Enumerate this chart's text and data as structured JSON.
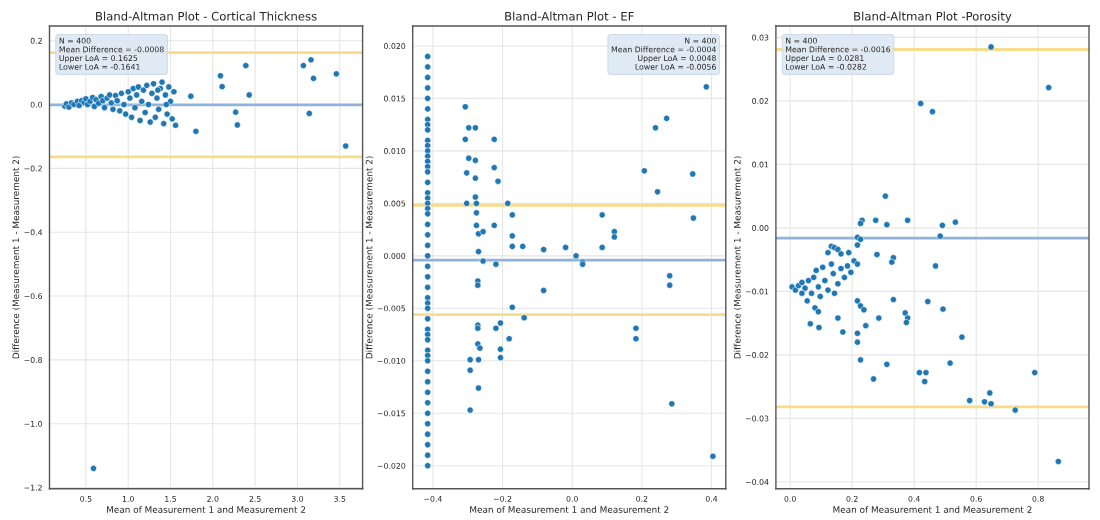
{
  "chart_data": [
    {
      "type": "scatter",
      "title": "Bland-Altman Plot - Cortical Thickness",
      "xlabel": "Mean of Measurement 1 and Measurement 2",
      "ylabel": "Difference (Measurement 1 - Measurement 2)",
      "grid": true,
      "marker": "circle",
      "xlim": [
        0.07,
        3.77
      ],
      "ylim": [
        -1.204,
        0.246
      ],
      "xticks": [
        {
          "value": 0.5,
          "label": "0.5"
        },
        {
          "value": 1.0,
          "label": "1.0"
        },
        {
          "value": 1.5,
          "label": "1.5"
        },
        {
          "value": 2.0,
          "label": "2.0"
        },
        {
          "value": 2.5,
          "label": "2.5"
        },
        {
          "value": 3.0,
          "label": "3.0"
        },
        {
          "value": 3.5,
          "label": "3.5"
        }
      ],
      "yticks": [
        {
          "value": 0.2,
          "label": "0.2"
        },
        {
          "value": 0.0,
          "label": "0.0"
        },
        {
          "value": -0.2,
          "label": "−0.2"
        },
        {
          "value": -0.4,
          "label": "−0.4"
        },
        {
          "value": -0.6,
          "label": "−0.6"
        },
        {
          "value": -0.8,
          "label": "−0.8"
        },
        {
          "value": -1.0,
          "label": "−1.0"
        },
        {
          "value": -1.2,
          "label": "−1.2"
        }
      ],
      "ref_lines": [
        {
          "axis": "y",
          "value": -0.0008,
          "color": "#8fb3d9"
        },
        {
          "axis": "y",
          "value": 0.1625,
          "color": "#f7dc8c"
        },
        {
          "axis": "y",
          "value": -0.1641,
          "color": "#f7dc8c"
        }
      ],
      "annotations": [
        "N = 400",
        "Mean Difference = -0.0008",
        "Upper LoA = 0.1625",
        "Lower LoA = -0.1641"
      ],
      "series": [
        {
          "color": "#1f77b4",
          "x": [
            0.25,
            0.27,
            0.3,
            0.33,
            0.36,
            0.4,
            0.42,
            0.45,
            0.48,
            0.5,
            0.52,
            0.55,
            0.58,
            0.6,
            0.62,
            0.65,
            0.68,
            0.7,
            0.72,
            0.75,
            0.78,
            0.8,
            0.82,
            0.85,
            0.87,
            0.9,
            0.92,
            0.95,
            0.97,
            1.0,
            1.02,
            1.04,
            1.06,
            1.08,
            1.1,
            1.12,
            1.14,
            1.16,
            1.18,
            1.2,
            1.22,
            1.24,
            1.26,
            1.28,
            1.3,
            1.32,
            1.34,
            1.36,
            1.38,
            1.4,
            1.42,
            1.44,
            1.46,
            1.48,
            1.5,
            1.52,
            1.54,
            1.56,
            1.45,
            1.35,
            1.74,
            1.8,
            2.09,
            2.11,
            2.27,
            2.29,
            2.39,
            2.43,
            3.07,
            3.16,
            3.19,
            3.14,
            3.46,
            3.57,
            0.59
          ],
          "values": [
            -0.005,
            0.002,
            -0.008,
            0.005,
            0.0,
            0.01,
            -0.003,
            0.012,
            0.006,
            0.018,
            0.0,
            0.01,
            0.022,
            -0.006,
            0.015,
            0.004,
            0.025,
            0.012,
            -0.01,
            0.02,
            0.03,
            0.005,
            -0.015,
            0.028,
            0.012,
            -0.02,
            0.035,
            0.0,
            -0.03,
            0.04,
            0.02,
            -0.04,
            0.05,
            -0.01,
            0.03,
            0.055,
            -0.05,
            0.01,
            0.045,
            -0.025,
            0.06,
            0.0,
            -0.055,
            0.035,
            0.065,
            -0.04,
            0.02,
            -0.015,
            0.05,
            0.07,
            -0.06,
            0.03,
            -0.03,
            0.055,
            0.01,
            -0.045,
            0.04,
            -0.065,
            0.0,
            0.045,
            0.026,
            -0.084,
            0.09,
            0.056,
            -0.024,
            -0.064,
            0.122,
            0.03,
            0.122,
            0.14,
            0.082,
            -0.028,
            0.096,
            -0.13,
            -1.14
          ]
        }
      ]
    },
    {
      "type": "scatter",
      "title": "Bland-Altman Plot - EF",
      "xlabel": "Mean of Measurement 1 and Measurement 2",
      "ylabel": "Difference (Measurement 1 - Measurement 2)",
      "grid": true,
      "marker": "circle",
      "xlim": [
        -0.458,
        0.441
      ],
      "ylim": [
        -0.0222,
        0.0219
      ],
      "xticks": [
        {
          "value": -0.4,
          "label": "−0.4"
        },
        {
          "value": -0.2,
          "label": "−0.2"
        },
        {
          "value": 0.0,
          "label": "0.0"
        },
        {
          "value": 0.2,
          "label": "0.2"
        },
        {
          "value": 0.4,
          "label": "0.4"
        }
      ],
      "yticks": [
        {
          "value": 0.02,
          "label": "0.020"
        },
        {
          "value": 0.015,
          "label": "0.015"
        },
        {
          "value": 0.01,
          "label": "0.010"
        },
        {
          "value": 0.005,
          "label": "0.005"
        },
        {
          "value": 0.0,
          "label": "0.000"
        },
        {
          "value": -0.005,
          "label": "−0.005"
        },
        {
          "value": -0.01,
          "label": "−0.010"
        },
        {
          "value": -0.015,
          "label": "−0.015"
        },
        {
          "value": -0.02,
          "label": "−0.020"
        }
      ],
      "ref_lines": [
        {
          "axis": "y",
          "value": -0.0004,
          "color": "#8fb3d9"
        },
        {
          "axis": "y",
          "value": 0.0048,
          "color": "#f7dc8c"
        },
        {
          "axis": "y",
          "value": -0.0056,
          "color": "#f7dc8c"
        }
      ],
      "annotations": [
        "N = 400",
        "Mean Difference = -0.0004",
        "Upper LoA = 0.0048",
        "Lower LoA = -0.0056"
      ],
      "series": [
        {
          "color": "#1f77b4",
          "x": [
            -0.415,
            -0.415,
            -0.415,
            -0.415,
            -0.415,
            -0.415,
            -0.415,
            -0.415,
            -0.415,
            -0.415,
            -0.415,
            -0.415,
            -0.415,
            -0.415,
            -0.415,
            -0.415,
            -0.415,
            -0.415,
            -0.415,
            -0.415,
            -0.415,
            -0.415,
            -0.415,
            -0.415,
            -0.415,
            -0.415,
            -0.415,
            -0.415,
            -0.415,
            -0.415,
            -0.415,
            -0.415,
            -0.415,
            -0.415,
            -0.415,
            -0.415,
            -0.415,
            -0.415,
            -0.415,
            -0.415,
            -0.415,
            -0.415,
            -0.415,
            -0.415,
            -0.415,
            -0.415,
            -0.415,
            -0.415,
            -0.415,
            -0.307,
            -0.297,
            -0.278,
            -0.307,
            -0.224,
            -0.297,
            -0.278,
            -0.303,
            -0.224,
            -0.213,
            -0.278,
            -0.278,
            -0.303,
            -0.275,
            -0.185,
            -0.275,
            -0.172,
            -0.275,
            -0.224,
            -0.269,
            -0.256,
            -0.172,
            -0.172,
            -0.142,
            -0.269,
            -0.082,
            -0.019,
            0.011,
            0.086,
            0.086,
            0.121,
            0.121,
            0.207,
            0.245,
            0.239,
            0.271,
            0.346,
            0.348,
            0.385,
            -0.256,
            -0.219,
            -0.271,
            -0.271,
            -0.172,
            -0.138,
            -0.082,
            0.03,
            0.03,
            0.28,
            0.28,
            -0.271,
            -0.271,
            -0.206,
            -0.219,
            -0.181,
            -0.271,
            -0.265,
            -0.293,
            -0.269,
            -0.206,
            -0.206,
            -0.293,
            -0.269,
            -0.293,
            0.183,
            0.183,
            0.286,
            0.404
          ],
          "values": [
            0.019,
            0.018,
            0.017,
            0.016,
            0.015,
            0.014,
            0.013,
            0.0125,
            0.012,
            0.011,
            0.0105,
            0.01,
            0.0095,
            0.009,
            0.0085,
            0.008,
            0.007,
            0.006,
            0.0055,
            0.005,
            0.0045,
            0.004,
            0.003,
            0.002,
            0.001,
            0.0,
            -0.001,
            -0.002,
            -0.003,
            -0.004,
            -0.0045,
            -0.005,
            -0.006,
            -0.007,
            -0.0075,
            -0.008,
            -0.009,
            -0.0095,
            -0.01,
            -0.011,
            -0.012,
            -0.013,
            -0.014,
            -0.015,
            -0.016,
            -0.017,
            -0.018,
            -0.019,
            -0.02,
            0.0142,
            0.0122,
            0.0122,
            0.0111,
            0.0111,
            0.0093,
            0.0091,
            0.0079,
            0.0084,
            0.0071,
            0.0074,
            0.0056,
            0.005,
            0.005,
            0.005,
            0.0041,
            0.0039,
            0.0029,
            0.0029,
            0.0021,
            0.0023,
            0.0019,
            0.0009,
            0.0009,
            0.0004,
            0.0006,
            0.0008,
            0.0,
            0.0039,
            0.0008,
            0.0023,
            0.0018,
            0.0081,
            0.0061,
            0.0122,
            0.0131,
            0.0078,
            0.0036,
            0.0161,
            -0.0005,
            -0.0008,
            -0.0024,
            -0.0028,
            -0.0049,
            -0.0059,
            -0.0033,
            -0.0006,
            -0.0008,
            -0.0019,
            -0.0028,
            -0.0066,
            -0.0069,
            -0.0064,
            -0.0069,
            -0.0079,
            -0.0084,
            -0.0088,
            -0.0099,
            -0.0099,
            -0.0089,
            -0.0097,
            -0.0109,
            -0.0126,
            -0.0147,
            -0.0069,
            -0.0079,
            -0.0141,
            -0.0191
          ]
        }
      ]
    },
    {
      "type": "scatter",
      "title": "Bland-Altman Plot -Porosity",
      "xlabel": "Mean of Measurement 1 and Measurement 2",
      "ylabel": "Difference (Measurement 1 - Measurement 2)",
      "grid": true,
      "marker": "circle",
      "xlim": [
        -0.046,
        0.964
      ],
      "ylim": [
        -0.0411,
        0.0318
      ],
      "xticks": [
        {
          "value": 0.0,
          "label": "0.0"
        },
        {
          "value": 0.2,
          "label": "0.2"
        },
        {
          "value": 0.4,
          "label": "0.4"
        },
        {
          "value": 0.6,
          "label": "0.6"
        },
        {
          "value": 0.8,
          "label": "0.8"
        }
      ],
      "yticks": [
        {
          "value": 0.03,
          "label": "0.03"
        },
        {
          "value": 0.02,
          "label": "0.02"
        },
        {
          "value": 0.01,
          "label": "0.01"
        },
        {
          "value": 0.0,
          "label": "0.00"
        },
        {
          "value": -0.01,
          "label": "−0.01"
        },
        {
          "value": -0.02,
          "label": "−0.02"
        },
        {
          "value": -0.03,
          "label": "−0.03"
        },
        {
          "value": -0.04,
          "label": "−0.04"
        }
      ],
      "ref_lines": [
        {
          "axis": "y",
          "value": -0.0016,
          "color": "#8fb3d9"
        },
        {
          "axis": "y",
          "value": 0.0281,
          "color": "#f7dc8c"
        },
        {
          "axis": "y",
          "value": -0.0282,
          "color": "#f7dc8c"
        }
      ],
      "annotations": [
        "N = 400",
        "Mean Difference = -0.0016",
        "Upper LoA = 0.0281",
        "Lower LoA = -0.0282"
      ],
      "series": [
        {
          "color": "#1f77b4",
          "x": [
            0.648,
            0.834,
            0.421,
            0.459,
            0.307,
            0.232,
            0.227,
            0.276,
            0.312,
            0.379,
            0.491,
            0.533,
            0.484,
            0.217,
            0.227,
            0.133,
            0.143,
            0.154,
            0.122,
            0.164,
            0.189,
            0.28,
            0.333,
            0.217,
            0.006,
            0.017,
            0.027,
            0.038,
            0.048,
            0.059,
            0.069,
            0.076,
            0.084,
            0.091,
            0.097,
            0.105,
            0.112,
            0.122,
            0.133,
            0.139,
            0.143,
            0.154,
            0.164,
            0.175,
            0.185,
            0.196,
            0.206,
            0.217,
            0.038,
            0.055,
            0.08,
            0.091,
            0.065,
            0.093,
            0.154,
            0.17,
            0.217,
            0.227,
            0.238,
            0.244,
            0.286,
            0.333,
            0.371,
            0.379,
            0.375,
            0.444,
            0.493,
            0.469,
            0.328,
            0.217,
            0.217,
            0.227,
            0.312,
            0.269,
            0.417,
            0.438,
            0.434,
            0.516,
            0.554,
            0.579,
            0.627,
            0.644,
            0.648,
            0.726,
            0.789,
            0.865
          ],
          "values": [
            0.0285,
            0.0221,
            0.0196,
            0.0183,
            0.005,
            0.0012,
            0.0007,
            0.0012,
            0.0005,
            0.0012,
            0.0004,
            0.0009,
            -0.0013,
            -0.0015,
            -0.0018,
            -0.0029,
            -0.0031,
            -0.0034,
            -0.0039,
            -0.0041,
            -0.0039,
            -0.0042,
            -0.0047,
            -0.0027,
            -0.0093,
            -0.0098,
            -0.0091,
            -0.0086,
            -0.0095,
            -0.0083,
            -0.0103,
            -0.0078,
            -0.0067,
            -0.0093,
            -0.0108,
            -0.0062,
            -0.0083,
            -0.0098,
            -0.0057,
            -0.0072,
            -0.0103,
            -0.0088,
            -0.0064,
            -0.0078,
            -0.006,
            -0.007,
            -0.0052,
            -0.0057,
            -0.0103,
            -0.0115,
            -0.0126,
            -0.0132,
            -0.0151,
            -0.0157,
            -0.0142,
            -0.0164,
            -0.0115,
            -0.0123,
            -0.0129,
            -0.0154,
            -0.0142,
            -0.0113,
            -0.0134,
            -0.0142,
            -0.0149,
            -0.0116,
            -0.0128,
            -0.006,
            -0.0054,
            -0.0166,
            -0.018,
            -0.0208,
            -0.0215,
            -0.0238,
            -0.0228,
            -0.0228,
            -0.0242,
            -0.0213,
            -0.0172,
            -0.0272,
            -0.0274,
            -0.026,
            -0.0277,
            -0.0287,
            -0.0228,
            -0.0368
          ]
        }
      ]
    }
  ]
}
